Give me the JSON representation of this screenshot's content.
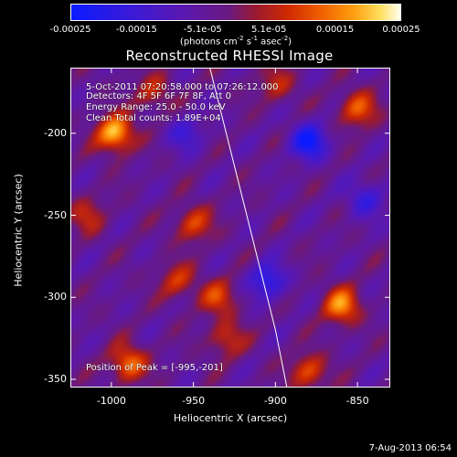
{
  "colorbar": {
    "ticks": [
      "-0.00025",
      "-0.00015",
      "-5.1e-05",
      "5.1e-05",
      "0.00015",
      "0.00025"
    ],
    "unit_main": "(photons cm",
    "unit_sup1": "-2",
    "unit_mid": " s",
    "unit_sup2": "-1",
    "unit_mid2": " asec",
    "unit_sup3": "-2",
    "unit_end": ")",
    "range": [
      -0.00025,
      0.00025
    ]
  },
  "info": {
    "time": "5-Oct-2011 07:20:58.000 to 07:26:12.000",
    "detectors": "Detectors: 4F 5F 6F 7F 8F, Att 0",
    "energy": "Energy Range: 25.0 - 50.0 keV",
    "clean": "Clean     Total counts: 1.89E+04",
    "peak": "Position of Peak = [-995,-201]"
  },
  "footer": {
    "date": "7-Aug-2013 06:54"
  },
  "chart_data": {
    "type": "heatmap",
    "title": "Reconstructed RHESSI Image",
    "xlabel": "Heliocentric X (arcsec)",
    "ylabel": "Heliocentric Y (arcsec)",
    "xlim": [
      -1025,
      -830
    ],
    "ylim": [
      -355,
      -160
    ],
    "x_ticks": [
      -1000,
      -950,
      -900,
      -850
    ],
    "y_ticks": [
      -200,
      -250,
      -300,
      -350
    ],
    "x_tick_labels": [
      "-1000",
      "-950",
      "-900",
      "-850"
    ],
    "y_tick_labels": [
      "-200",
      "-250",
      "-300",
      "-350"
    ],
    "peak": [
      -995,
      -201
    ],
    "limb_curve": [
      [
        -940,
        -160
      ],
      [
        -930,
        -200
      ],
      [
        -920,
        -240
      ],
      [
        -910,
        -280
      ],
      [
        -900,
        -320
      ],
      [
        -893,
        -355
      ]
    ],
    "bright_sources": [
      {
        "x": -998,
        "y": -200,
        "value": 0.00025
      },
      {
        "x": -950,
        "y": -255,
        "value": 0.00014
      },
      {
        "x": -960,
        "y": -290,
        "value": 0.00012
      },
      {
        "x": -990,
        "y": -340,
        "value": 0.00018
      },
      {
        "x": -930,
        "y": -325,
        "value": 0.00012
      },
      {
        "x": -860,
        "y": -305,
        "value": 0.0002
      },
      {
        "x": -850,
        "y": -185,
        "value": 0.00016
      },
      {
        "x": -900,
        "y": -170,
        "value": 0.0001
      },
      {
        "x": -880,
        "y": -345,
        "value": 0.00015
      },
      {
        "x": -1015,
        "y": -250,
        "value": 0.0001
      },
      {
        "x": -975,
        "y": -175,
        "value": 0.00011
      },
      {
        "x": -935,
        "y": -300,
        "value": 0.00013
      }
    ],
    "dark_sources": [
      {
        "x": -880,
        "y": -205,
        "value": -0.0002
      },
      {
        "x": -905,
        "y": -290,
        "value": -0.00016
      },
      {
        "x": -955,
        "y": -200,
        "value": -0.0001
      },
      {
        "x": -845,
        "y": -240,
        "value": -0.00012
      }
    ]
  }
}
